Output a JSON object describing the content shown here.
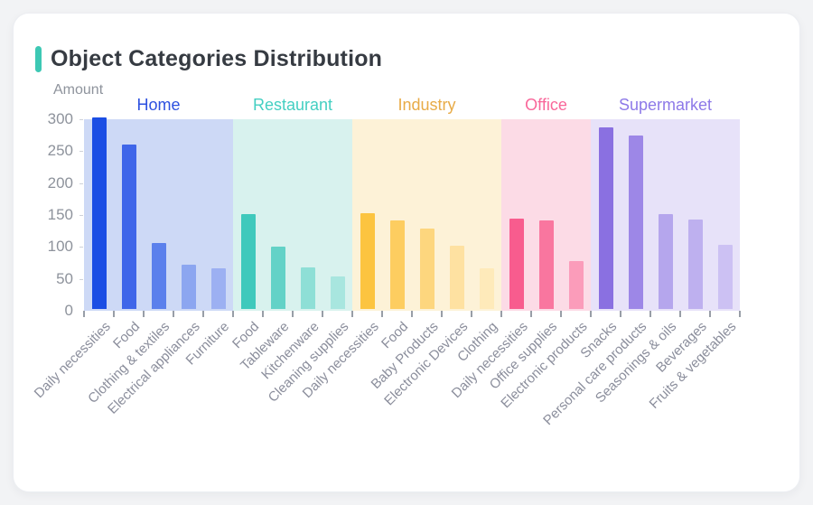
{
  "page": {
    "background_color": "#f2f3f5"
  },
  "card": {
    "title": "Object Categories Distribution",
    "accent_color": "#3dc8b4",
    "title_color": "#363b42"
  },
  "chart_data": {
    "type": "bar",
    "title": "Object Categories Distribution",
    "xlabel": "",
    "ylabel": "Amount",
    "ylim": [
      0,
      300
    ],
    "yticks": [
      0,
      50,
      100,
      150,
      200,
      250,
      300
    ],
    "grid": false,
    "legend_position": "none",
    "axis_color": "#989ea7",
    "tick_label_color": "#8e939c",
    "x_label_color": "#8b8e9c",
    "groups": [
      {
        "name": "Home",
        "label_color": "#2d51e0",
        "band_color": "#cdd9f6",
        "bars": [
          {
            "label": "Daily necessities",
            "value": 300,
            "color": "#1b4ee4"
          },
          {
            "label": "Food",
            "value": 258,
            "color": "#3f66e9"
          },
          {
            "label": "Clothing & textiles",
            "value": 103,
            "color": "#5b80ec"
          },
          {
            "label": "Electrical appliances",
            "value": 69,
            "color": "#8ca6f0"
          },
          {
            "label": "Furniture",
            "value": 63,
            "color": "#9cb0f2"
          }
        ]
      },
      {
        "name": "Restaurant",
        "label_color": "#44cfc2",
        "band_color": "#d8f2ee",
        "bars": [
          {
            "label": "Food",
            "value": 148,
            "color": "#3fc9bc"
          },
          {
            "label": "Tableware",
            "value": 97,
            "color": "#63d2c7"
          },
          {
            "label": "Kitchenware",
            "value": 65,
            "color": "#8edfd6"
          },
          {
            "label": "Cleaning supplies",
            "value": 51,
            "color": "#a8e6df"
          }
        ]
      },
      {
        "name": "Industry",
        "label_color": "#e8ab47",
        "band_color": "#fdf2d7",
        "bars": [
          {
            "label": "Daily necessities",
            "value": 150,
            "color": "#fcc440"
          },
          {
            "label": "Food",
            "value": 139,
            "color": "#fdcd60"
          },
          {
            "label": "Baby Products",
            "value": 126,
            "color": "#fdd67e"
          },
          {
            "label": "Electronic Devices",
            "value": 99,
            "color": "#fee1a1"
          },
          {
            "label": "Clothing",
            "value": 63,
            "color": "#feeaba"
          }
        ]
      },
      {
        "name": "Office",
        "label_color": "#f9679a",
        "band_color": "#fcdbe6",
        "bars": [
          {
            "label": "Daily necessities",
            "value": 142,
            "color": "#f85c8e"
          },
          {
            "label": "Office supplies",
            "value": 139,
            "color": "#f9769f"
          },
          {
            "label": "Electronic products",
            "value": 75,
            "color": "#fb9cba"
          }
        ]
      },
      {
        "name": "Supermarket",
        "label_color": "#8d79e8",
        "band_color": "#e7e2f9",
        "bars": [
          {
            "label": "Snacks",
            "value": 285,
            "color": "#8a70e1"
          },
          {
            "label": "Personal care products",
            "value": 272,
            "color": "#9d87e7"
          },
          {
            "label": "Seasonings & oils",
            "value": 148,
            "color": "#b5a6ed"
          },
          {
            "label": "Beverages",
            "value": 140,
            "color": "#beb0ef"
          },
          {
            "label": "Fruits & vegetables",
            "value": 101,
            "color": "#ccc1f3"
          }
        ]
      }
    ]
  }
}
